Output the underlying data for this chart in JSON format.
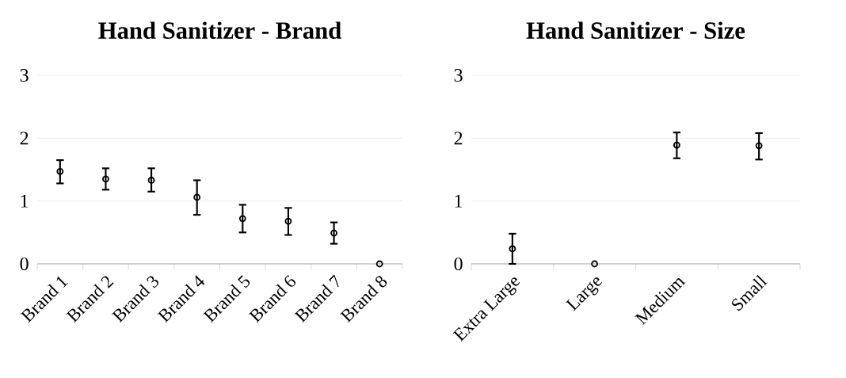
{
  "chart_data": [
    {
      "type": "scatter",
      "title": "Hand Sanitizer - Brand",
      "categories": [
        "Brand 1",
        "Brand 2",
        "Brand 3",
        "Brand 4",
        "Brand 5",
        "Brand 6",
        "Brand 7",
        "Brand 8"
      ],
      "values": [
        1.47,
        1.35,
        1.33,
        1.06,
        0.72,
        0.68,
        0.49,
        0
      ],
      "errors": [
        [
          1.28,
          1.65
        ],
        [
          1.18,
          1.52
        ],
        [
          1.15,
          1.52
        ],
        [
          0.78,
          1.33
        ],
        [
          0.5,
          0.94
        ],
        [
          0.46,
          0.89
        ],
        [
          0.32,
          0.66
        ],
        null
      ],
      "color": "#000000",
      "marker": "circle",
      "ylim": [
        0,
        3
      ],
      "yticks": [
        0,
        1,
        2,
        3
      ],
      "grid": "y"
    },
    {
      "type": "scatter",
      "title": "Hand Sanitizer - Size",
      "categories": [
        "Extra Large",
        "Large",
        "Medium",
        "Small"
      ],
      "values": [
        0.24,
        0,
        1.89,
        1.88
      ],
      "errors": [
        [
          0,
          0.48
        ],
        null,
        [
          1.68,
          2.09
        ],
        [
          1.66,
          2.08
        ]
      ],
      "color": "#000000",
      "marker": "circle",
      "ylim": [
        0,
        3
      ],
      "yticks": [
        0,
        1,
        2,
        3
      ],
      "grid": "y"
    }
  ]
}
